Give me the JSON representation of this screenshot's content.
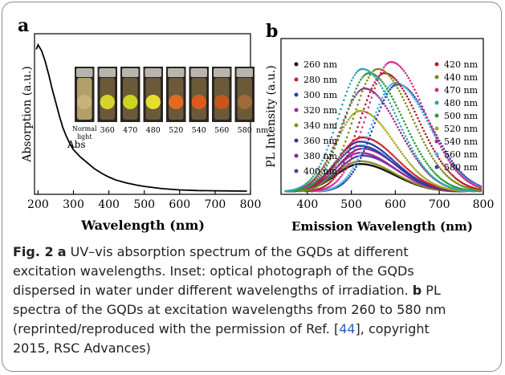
{
  "chart_data": [
    {
      "panel": "a",
      "type": "line",
      "xlabel": "Wavelength (nm)",
      "ylabel": "Absorption (a.u.)",
      "xlim": [
        190,
        800
      ],
      "xticks": [
        200,
        300,
        400,
        500,
        600,
        700,
        800
      ],
      "annotation": "Abs",
      "series": [
        {
          "x": [
            195,
            200,
            210,
            220,
            230,
            240,
            250,
            260,
            270,
            280,
            290,
            300,
            320,
            340,
            360,
            380,
            400,
            420,
            450,
            480,
            500,
            550,
            600,
            650,
            700,
            750,
            790
          ],
          "y": [
            0.96,
            0.99,
            0.95,
            0.88,
            0.79,
            0.69,
            0.6,
            0.51,
            0.43,
            0.37,
            0.32,
            0.28,
            0.23,
            0.19,
            0.15,
            0.12,
            0.095,
            0.075,
            0.055,
            0.04,
            0.032,
            0.017,
            0.008,
            0.004,
            0.002,
            0.001,
            0.0
          ]
        }
      ],
      "inset": {
        "vials": [
          {
            "label": "Normal light",
            "label_lines": [
              "Normal",
              "light"
            ],
            "glow": "#c9b57c"
          },
          {
            "label": "360",
            "glow": "#e4e02a"
          },
          {
            "label": "470",
            "glow": "#d6e21c"
          },
          {
            "label": "480",
            "glow": "#f3ee2c"
          },
          {
            "label": "520",
            "glow": "#f06a1e"
          },
          {
            "label": "540",
            "glow": "#ea5a18"
          },
          {
            "label": "560",
            "glow": "#d4541a"
          },
          {
            "label": "580",
            "glow": "#a56b3a"
          }
        ],
        "unit": "nm"
      }
    },
    {
      "panel": "b",
      "type": "scatter",
      "xlabel": "Emission Wavelength (nm)",
      "ylabel": "PL Intensity (a.u.)",
      "xlim": [
        340,
        800
      ],
      "xticks": [
        400,
        500,
        600,
        700,
        800
      ],
      "legend_left": [
        "260 nm",
        "280 nm",
        "300 nm",
        "320 nm",
        "340 nm",
        "360 nm",
        "380 nm",
        "400 nm"
      ],
      "legend_right": [
        "420 nm",
        "440 nm",
        "470 nm",
        "480 nm",
        "500 nm",
        "520 nm",
        "540 nm",
        "560 nm",
        "580 nm"
      ],
      "series": [
        {
          "name": "260 nm",
          "color": "#111111",
          "peak": 520,
          "amp": 0.2
        },
        {
          "name": "280 nm",
          "color": "#c7222a",
          "peak": 525,
          "amp": 0.39
        },
        {
          "name": "300 nm",
          "color": "#2e3fa5",
          "peak": 520,
          "amp": 0.33
        },
        {
          "name": "320 nm",
          "color": "#a3239c",
          "peak": 520,
          "amp": 0.28
        },
        {
          "name": "340 nm",
          "color": "#8c8f1f",
          "peak": 520,
          "amp": 0.22
        },
        {
          "name": "360 nm",
          "color": "#2a3b9e",
          "peak": 520,
          "amp": 0.36
        },
        {
          "name": "380 nm",
          "color": "#7f2e86",
          "peak": 525,
          "amp": 0.31
        },
        {
          "name": "400 nm",
          "color": "#4a3fa0",
          "peak": 525,
          "amp": 0.26
        },
        {
          "name": "420 nm",
          "color": "#b01c2c",
          "peak": 575,
          "amp": 0.85
        },
        {
          "name": "440 nm",
          "color": "#7a8a1c",
          "peak": 560,
          "amp": 0.88
        },
        {
          "name": "470 nm",
          "color": "#d42c8c",
          "peak": 590,
          "amp": 0.93
        },
        {
          "name": "480 nm",
          "color": "#2aa7ad",
          "peak": 525,
          "amp": 0.88
        },
        {
          "name": "500 nm",
          "color": "#2f9b3a",
          "peak": 540,
          "amp": 0.85
        },
        {
          "name": "520 nm",
          "color": "#a8a621",
          "peak": 520,
          "amp": 0.58
        },
        {
          "name": "540 nm",
          "color": "#9b2f8c",
          "peak": 530,
          "amp": 0.74
        },
        {
          "name": "560 nm",
          "color": "#45b6e8",
          "peak": 600,
          "amp": 0.78
        },
        {
          "name": "580 nm",
          "color": "#3b3f9f",
          "peak": 605,
          "amp": 0.77
        }
      ]
    }
  ],
  "caption": {
    "lines": [
      [
        {
          "t": "Fig. 2",
          "b": true
        },
        {
          "t": "  "
        },
        {
          "t": "a",
          "b": true
        },
        {
          "t": " UV–vis absorption spectrum of the GQDs at different"
        }
      ],
      [
        {
          "t": "excitation wavelengths. Inset: optical photograph of the GQDs"
        }
      ],
      [
        {
          "t": "dispersed in water under different wavelengths of irradiation. "
        },
        {
          "t": "b",
          "b": true
        },
        {
          "t": " PL"
        }
      ],
      [
        {
          "t": "spectra of the GQDs at excitation wavelengths from 260 to 580 nm"
        }
      ],
      [
        {
          "t": "(reprinted/reproduced with the permission of Ref. ["
        },
        {
          "t": "44",
          "ref": true
        },
        {
          "t": "], copyright"
        }
      ],
      [
        {
          "t": "2015, RSC Advances)"
        }
      ]
    ]
  },
  "colors": {
    "axis": "#000000",
    "frame": "#8a8a8a",
    "ref_link": "#2a62b8"
  }
}
